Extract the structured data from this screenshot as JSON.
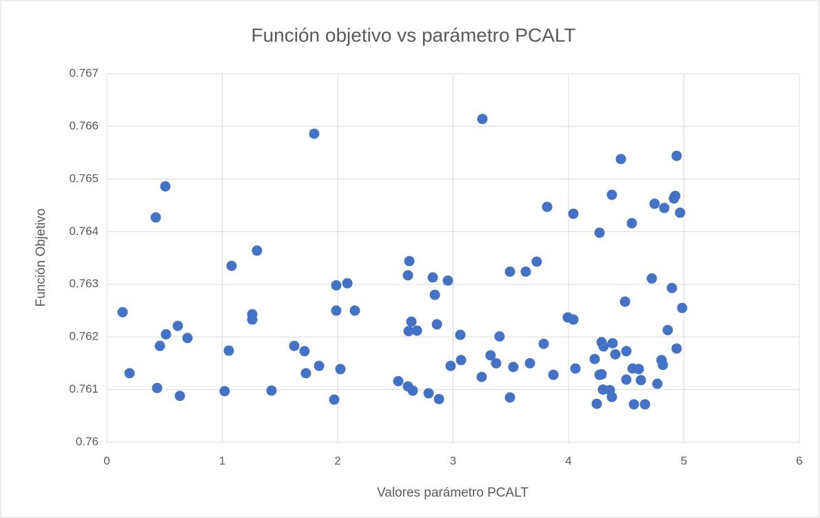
{
  "chart_data": {
    "type": "scatter",
    "title": "Función objetivo vs parámetro PCALT",
    "x_label": "Valores parámetro PCALT",
    "y_label": "Función Objetivo",
    "color": "#4472c4",
    "grid": true,
    "xlim": [
      0,
      6
    ],
    "xticks": [
      0,
      1,
      2,
      3,
      4,
      5,
      6
    ],
    "ylim": [
      0.76,
      0.767
    ],
    "yticks": [
      0.76,
      0.761,
      0.762,
      0.763,
      0.764,
      0.765,
      0.766,
      0.767
    ],
    "x": [
      0.137,
      0.197,
      0.424,
      0.436,
      0.46,
      0.507,
      0.513,
      0.615,
      0.633,
      0.699,
      1.021,
      1.057,
      1.081,
      1.26,
      1.26,
      1.301,
      1.427,
      1.624,
      1.713,
      1.725,
      1.797,
      1.839,
      1.97,
      1.988,
      1.988,
      2.024,
      2.084,
      2.149,
      2.525,
      2.609,
      2.609,
      2.615,
      2.621,
      2.639,
      2.651,
      2.687,
      2.788,
      2.824,
      2.842,
      2.86,
      2.878,
      2.955,
      2.979,
      3.063,
      3.069,
      3.248,
      3.254,
      3.325,
      3.373,
      3.403,
      3.493,
      3.493,
      3.522,
      3.63,
      3.666,
      3.725,
      3.785,
      3.815,
      3.869,
      3.994,
      4.042,
      4.042,
      4.06,
      4.227,
      4.245,
      4.269,
      4.269,
      4.287,
      4.287,
      4.304,
      4.299,
      4.358,
      4.376,
      4.376,
      4.382,
      4.406,
      4.454,
      4.49,
      4.501,
      4.501,
      4.555,
      4.567,
      4.549,
      4.609,
      4.627,
      4.663,
      4.722,
      4.746,
      4.77,
      4.806,
      4.818,
      4.83,
      4.86,
      4.896,
      4.913,
      4.925,
      4.937,
      4.937,
      4.967,
      4.985
    ],
    "y": [
      0.76247,
      0.76131,
      0.76427,
      0.76103,
      0.76183,
      0.76486,
      0.76205,
      0.76221,
      0.76088,
      0.76198,
      0.76097,
      0.76174,
      0.76335,
      0.76243,
      0.76233,
      0.76364,
      0.76098,
      0.76183,
      0.76173,
      0.76131,
      0.76586,
      0.76145,
      0.76081,
      0.76298,
      0.7625,
      0.76139,
      0.76302,
      0.7625,
      0.76116,
      0.76106,
      0.76317,
      0.76211,
      0.76344,
      0.76229,
      0.76098,
      0.76212,
      0.76093,
      0.76313,
      0.7628,
      0.76224,
      0.76082,
      0.76307,
      0.76145,
      0.76204,
      0.76156,
      0.76124,
      0.76614,
      0.76165,
      0.7615,
      0.76201,
      0.76085,
      0.76324,
      0.76143,
      0.76324,
      0.7615,
      0.76343,
      0.76187,
      0.76447,
      0.76128,
      0.76237,
      0.76233,
      0.76434,
      0.7614,
      0.76158,
      0.76073,
      0.76398,
      0.76128,
      0.76129,
      0.7619,
      0.76182,
      0.761,
      0.76099,
      0.76086,
      0.7647,
      0.76188,
      0.76167,
      0.76538,
      0.76267,
      0.76173,
      0.76119,
      0.7614,
      0.76072,
      0.76416,
      0.76139,
      0.76118,
      0.76072,
      0.76311,
      0.76453,
      0.76111,
      0.76156,
      0.76147,
      0.76445,
      0.76213,
      0.76293,
      0.76463,
      0.76468,
      0.76544,
      0.76178,
      0.76436,
      0.76255
    ]
  }
}
